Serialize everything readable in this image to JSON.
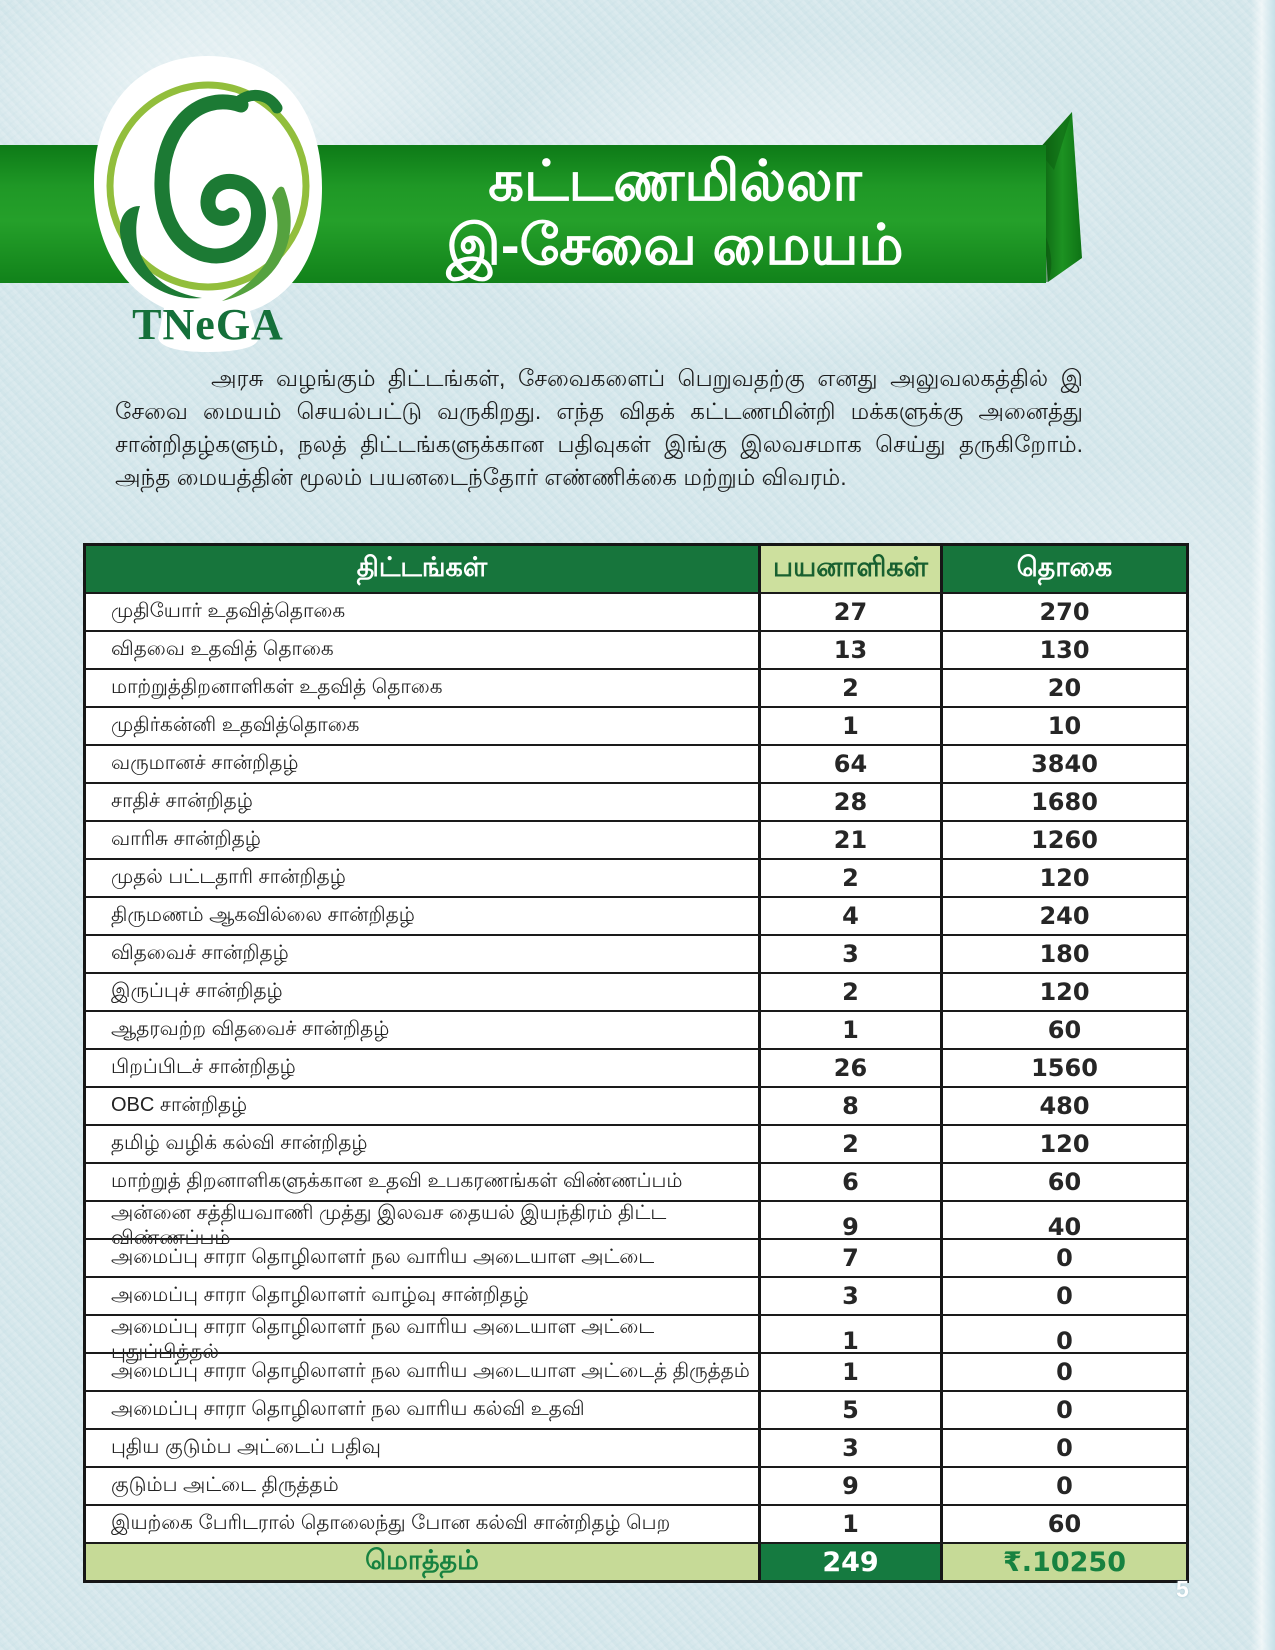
{
  "page": {
    "number": "5"
  },
  "logo": {
    "text": "TNeGA"
  },
  "banner": {
    "title_line1": "கட்டணமில்லா",
    "title_line2": "இ-சேவை மையம்"
  },
  "intro_paragraph": "அரசு வழங்கும் திட்டங்கள், சேவைகளைப் பெறுவதற்கு எனது அலுவலகத்தில் இ சேவை மையம் செயல்பட்டு வருகிறது. எந்த விதக் கட்டணமின்றி மக்களுக்கு அனைத்து சான்றிதழ்களும், நலத் திட்டங்களுக்கான பதிவுகள் இங்கு இலவசமாக செய்து தருகிறோம். அந்த மையத்தின் மூலம் பயனடைந்தோர் எண்ணிக்கை மற்றும் விவரம்.",
  "table": {
    "headers": [
      "திட்டங்கள்",
      "பயனாளிகள்",
      "தொகை"
    ],
    "rows": [
      {
        "scheme": "முதியோர் உதவித்தொகை",
        "beneficiaries": "27",
        "amount": "270"
      },
      {
        "scheme": "விதவை உதவித் தொகை",
        "beneficiaries": "13",
        "amount": "130"
      },
      {
        "scheme": "மாற்றுத்திறனாளிகள் உதவித் தொகை",
        "beneficiaries": "2",
        "amount": "20"
      },
      {
        "scheme": "முதிர்கன்னி உதவித்தொகை",
        "beneficiaries": "1",
        "amount": "10"
      },
      {
        "scheme": "வருமானச் சான்றிதழ்",
        "beneficiaries": "64",
        "amount": "3840"
      },
      {
        "scheme": "சாதிச் சான்றிதழ்",
        "beneficiaries": "28",
        "amount": "1680"
      },
      {
        "scheme": "வாரிசு சான்றிதழ்",
        "beneficiaries": "21",
        "amount": "1260"
      },
      {
        "scheme": "முதல் பட்டதாரி சான்றிதழ்",
        "beneficiaries": "2",
        "amount": "120"
      },
      {
        "scheme": "திருமணம் ஆகவில்லை சான்றிதழ்",
        "beneficiaries": "4",
        "amount": "240"
      },
      {
        "scheme": "விதவைச் சான்றிதழ்",
        "beneficiaries": "3",
        "amount": "180"
      },
      {
        "scheme": "இருப்புச் சான்றிதழ்",
        "beneficiaries": "2",
        "amount": "120"
      },
      {
        "scheme": "ஆதரவற்ற விதவைச் சான்றிதழ்",
        "beneficiaries": "1",
        "amount": "60"
      },
      {
        "scheme": "பிறப்பிடச் சான்றிதழ்",
        "beneficiaries": "26",
        "amount": "1560"
      },
      {
        "scheme": "OBC சான்றிதழ்",
        "beneficiaries": "8",
        "amount": "480"
      },
      {
        "scheme": "தமிழ் வழிக் கல்வி சான்றிதழ்",
        "beneficiaries": "2",
        "amount": "120"
      },
      {
        "scheme": "மாற்றுத் திறனாளிகளுக்கான உதவி உபகரணங்கள் விண்ணப்பம்",
        "beneficiaries": "6",
        "amount": "60"
      },
      {
        "scheme": "அன்னை சத்தியவாணி முத்து இலவச தையல் இயந்திரம் திட்ட விண்ணப்பம்",
        "beneficiaries": "9",
        "amount": "40"
      },
      {
        "scheme": "அமைப்பு சாரா தொழிலாளர் நல வாரிய அடையாள அட்டை",
        "beneficiaries": "7",
        "amount": "0"
      },
      {
        "scheme": "அமைப்பு சாரா தொழிலாளர் வாழ்வு சான்றிதழ்",
        "beneficiaries": "3",
        "amount": "0"
      },
      {
        "scheme": "அமைப்பு சாரா தொழிலாளர் நல வாரிய அடையாள அட்டை புதுப்பித்தல்",
        "beneficiaries": "1",
        "amount": "0"
      },
      {
        "scheme": "அமைப்பு சாரா தொழிலாளர் நல வாரிய அடையாள அட்டைத் திருத்தம்",
        "beneficiaries": "1",
        "amount": "0"
      },
      {
        "scheme": "அமைப்பு சாரா தொழிலாளர் நல வாரிய கல்வி உதவி",
        "beneficiaries": "5",
        "amount": "0"
      },
      {
        "scheme": "புதிய குடும்ப அட்டைப் பதிவு",
        "beneficiaries": "3",
        "amount": "0"
      },
      {
        "scheme": "குடும்ப அட்டை திருத்தம்",
        "beneficiaries": "9",
        "amount": "0"
      },
      {
        "scheme": "இயற்கை பேரிடரால் தொலைந்து போன கல்வி சான்றிதழ் பெற",
        "beneficiaries": "1",
        "amount": "60"
      }
    ],
    "total": {
      "label": "மொத்தம்",
      "beneficiaries": "249",
      "amount": "₹.10250"
    }
  },
  "colors": {
    "banner_green": "#1f9826",
    "header_dark_green": "#17753c",
    "header_light_green": "#cde09e",
    "total_light_green": "#c6da97",
    "total_dark_green": "#157a40",
    "page_background": "#d7e8ec"
  }
}
